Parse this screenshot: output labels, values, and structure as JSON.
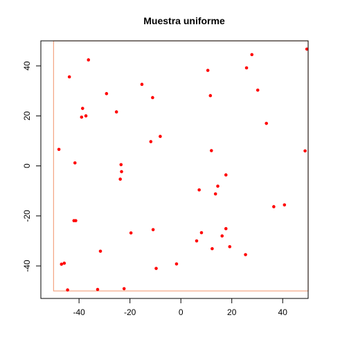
{
  "chart_data": {
    "type": "scatter",
    "title": "Muestra uniforme",
    "xlabel": "",
    "ylabel": "",
    "xlim": [
      -55,
      50
    ],
    "ylim": [
      -53,
      50
    ],
    "x_ticks": [
      -40,
      -20,
      0,
      20,
      40
    ],
    "y_ticks": [
      -40,
      -20,
      0,
      20,
      40
    ],
    "grid": false,
    "point_color": "#ff0000",
    "rect_color": "#f4a582",
    "rect": {
      "x0": -50,
      "x1": 50,
      "y0": -50,
      "y1": 50
    },
    "points": [
      {
        "x": 49.5,
        "y": 46.7
      },
      {
        "x": 27.9,
        "y": 44.5
      },
      {
        "x": -36.3,
        "y": 42.4
      },
      {
        "x": 25.8,
        "y": 39.2
      },
      {
        "x": 10.6,
        "y": 38.2
      },
      {
        "x": -43.8,
        "y": 35.6
      },
      {
        "x": -15.3,
        "y": 32.6
      },
      {
        "x": 30.2,
        "y": 30.3
      },
      {
        "x": -29.2,
        "y": 28.9
      },
      {
        "x": 11.6,
        "y": 28.1
      },
      {
        "x": -11.1,
        "y": 27.3
      },
      {
        "x": -38.6,
        "y": 23.0
      },
      {
        "x": -25.3,
        "y": 21.6
      },
      {
        "x": -37.3,
        "y": 20.0
      },
      {
        "x": -39.0,
        "y": 19.5
      },
      {
        "x": 33.6,
        "y": 17.0
      },
      {
        "x": -8.1,
        "y": 11.8
      },
      {
        "x": -11.8,
        "y": 9.7
      },
      {
        "x": -47.9,
        "y": 6.6
      },
      {
        "x": 12.0,
        "y": 6.1
      },
      {
        "x": 48.8,
        "y": 6.0
      },
      {
        "x": -41.6,
        "y": 1.2
      },
      {
        "x": -23.5,
        "y": 0.5
      },
      {
        "x": -23.3,
        "y": -2.3
      },
      {
        "x": 17.7,
        "y": -3.6
      },
      {
        "x": -23.8,
        "y": -5.3
      },
      {
        "x": 14.5,
        "y": -8.1
      },
      {
        "x": 7.2,
        "y": -9.6
      },
      {
        "x": 13.6,
        "y": -11.2
      },
      {
        "x": 40.7,
        "y": -15.6
      },
      {
        "x": 36.5,
        "y": -16.3
      },
      {
        "x": -42.0,
        "y": -21.9
      },
      {
        "x": -41.3,
        "y": -21.9
      },
      {
        "x": 17.7,
        "y": -25.1
      },
      {
        "x": -10.9,
        "y": -25.5
      },
      {
        "x": 8.1,
        "y": -26.7
      },
      {
        "x": -19.6,
        "y": -26.8
      },
      {
        "x": 16.2,
        "y": -28.0
      },
      {
        "x": 6.2,
        "y": -30.0
      },
      {
        "x": 19.2,
        "y": -32.3
      },
      {
        "x": 12.3,
        "y": -33.1
      },
      {
        "x": -31.6,
        "y": -34.1
      },
      {
        "x": 25.4,
        "y": -35.5
      },
      {
        "x": -45.8,
        "y": -38.9
      },
      {
        "x": -46.9,
        "y": -39.3
      },
      {
        "x": -1.7,
        "y": -39.2
      },
      {
        "x": -9.7,
        "y": -41.0
      },
      {
        "x": -44.5,
        "y": -49.6
      },
      {
        "x": -32.7,
        "y": -49.4
      },
      {
        "x": -22.3,
        "y": -49.1
      }
    ]
  }
}
